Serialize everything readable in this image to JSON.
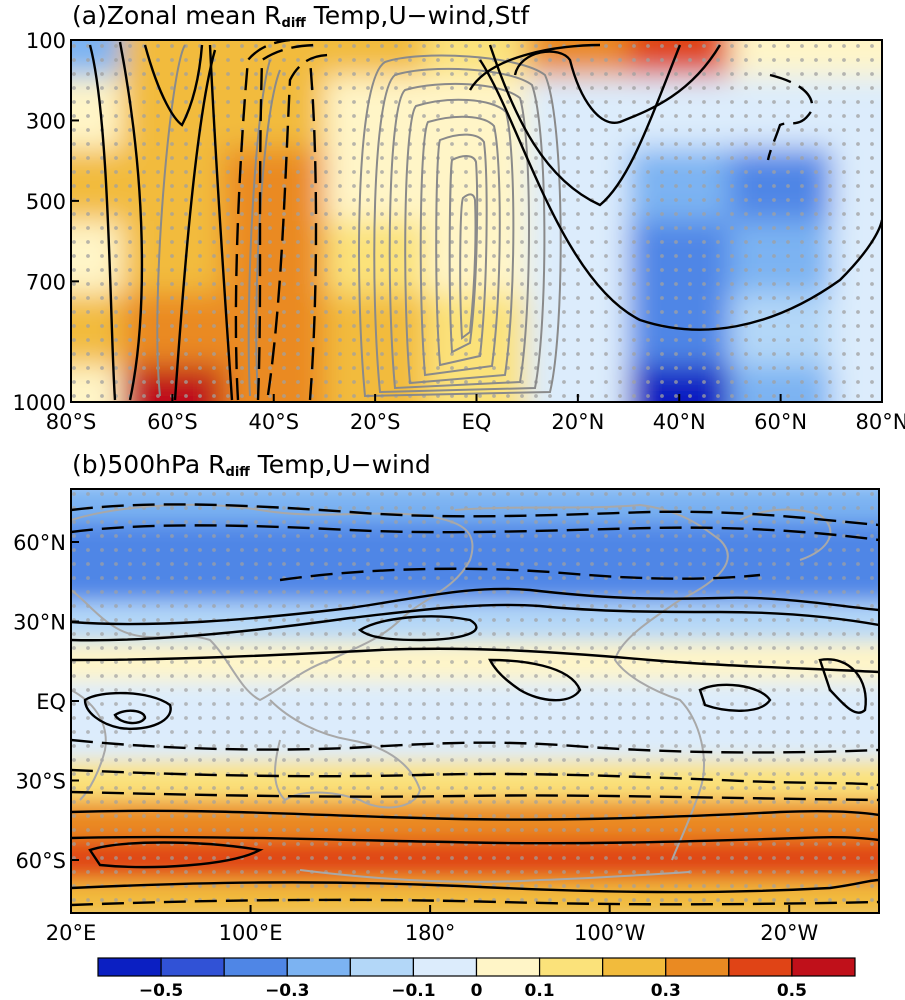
{
  "colors": {
    "levels": [
      "#0b1fc2",
      "#3152d6",
      "#4f86e6",
      "#7cb3f2",
      "#b3d7f8",
      "#dcecfc",
      "#fff5c7",
      "#fbe27a",
      "#f2bb3c",
      "#ea8a22",
      "#e04416",
      "#c0101a"
    ],
    "stipple": "#a0a0a0",
    "contour_pos": "#000000",
    "contour_streamfunction": "#8a8a8a",
    "coastline": "#a8a8a8"
  },
  "colorbar": {
    "ticks": [
      "−0.5",
      "−0.3",
      "−0.1",
      "0",
      "0.1",
      "0.3",
      "0.5"
    ]
  },
  "chart_data": [
    {
      "type": "heatmap",
      "panel": "a",
      "title_prefix": "(a)Zonal mean R",
      "title_sub": "diff",
      "title_suffix": " Temp,U−wind,Stf",
      "x_ticklabels": [
        "80°S",
        "60°S",
        "40°S",
        "20°S",
        "EQ",
        "20°N",
        "40°N",
        "60°N",
        "80°N"
      ],
      "y_ticklabels": [
        "100",
        "300",
        "500",
        "700",
        "1000"
      ],
      "x_values": [
        -80,
        -60,
        -40,
        -20,
        0,
        20,
        40,
        60,
        80
      ],
      "y_values": [
        100,
        300,
        500,
        700,
        900,
        1000
      ],
      "z": [
        [
          -0.2,
          0.25,
          0.2,
          0.25,
          0.15,
          0.35,
          0.4,
          0.1,
          0.05
        ],
        [
          0.1,
          0.25,
          0.2,
          0.1,
          0.05,
          0.0,
          -0.1,
          -0.1,
          -0.1
        ],
        [
          0.2,
          0.2,
          0.35,
          0.1,
          0.05,
          -0.05,
          -0.2,
          -0.3,
          -0.1
        ],
        [
          0.1,
          0.3,
          0.35,
          0.15,
          0.1,
          -0.05,
          -0.35,
          -0.2,
          -0.05
        ],
        [
          0.2,
          0.35,
          0.35,
          0.25,
          0.15,
          -0.05,
          -0.35,
          -0.15,
          -0.05
        ],
        [
          0.1,
          0.55,
          0.35,
          0.25,
          0.15,
          -0.1,
          -0.55,
          -0.2,
          -0.1
        ]
      ],
      "contours": [
        "temperature (shading)",
        "U-wind (black contours)",
        "stream function (grey contours)"
      ]
    },
    {
      "type": "heatmap",
      "panel": "b",
      "title_prefix": "(b)500hPa R",
      "title_sub": "diff",
      "title_suffix": " Temp,U−wind",
      "x_ticklabels": [
        "20°E",
        "100°E",
        "180°",
        "100°W",
        "20°W"
      ],
      "y_ticklabels": [
        "60°N",
        "30°N",
        "EQ",
        "30°S",
        "60°S"
      ],
      "x_values": [
        20,
        100,
        180,
        260,
        340
      ],
      "y_values": [
        75,
        60,
        45,
        30,
        15,
        0,
        -15,
        -30,
        -45,
        -60,
        -75
      ],
      "z_by_lat": [
        -0.25,
        -0.3,
        -0.35,
        -0.15,
        0.05,
        -0.05,
        -0.05,
        0.15,
        0.35,
        0.45,
        0.2
      ],
      "contours": [
        "temperature (shading)",
        "U-wind (black contours)"
      ]
    }
  ]
}
